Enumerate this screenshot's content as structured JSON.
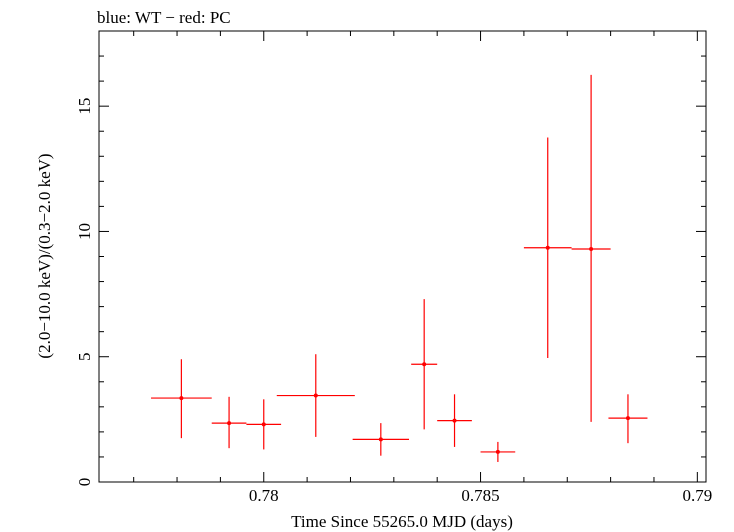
{
  "chart_data": {
    "type": "scatter",
    "title": "blue: WT − red: PC",
    "xlabel": "Time Since 55265.0 MJD (days)",
    "ylabel": "(2.0−10.0 keV)/(0.3−2.0 keV)",
    "xlim": [
      0.7762,
      0.7902
    ],
    "ylim": [
      0,
      18.0
    ],
    "x_ticks": [
      {
        "value": 0.78,
        "label": "0.78"
      },
      {
        "value": 0.785,
        "label": "0.785"
      },
      {
        "value": 0.79,
        "label": "0.79"
      }
    ],
    "y_ticks": [
      {
        "value": 0,
        "label": "0"
      },
      {
        "value": 5,
        "label": "5"
      },
      {
        "value": 10,
        "label": "10"
      },
      {
        "value": 15,
        "label": "15"
      }
    ],
    "x_minor_step": 0.001,
    "y_minor_step": 1,
    "grid": false,
    "color": "#ff0000",
    "series": [
      {
        "points": [
          {
            "x": 0.7781,
            "xerr": 0.0007,
            "y": 3.35,
            "yerr_low": 1.6,
            "yerr_high": 1.55
          },
          {
            "x": 0.7792,
            "xerr": 0.0004,
            "y": 2.35,
            "yerr_low": 1.0,
            "yerr_high": 1.05
          },
          {
            "x": 0.78,
            "xerr": 0.0004,
            "y": 2.3,
            "yerr_low": 1.0,
            "yerr_high": 1.0
          },
          {
            "x": 0.7812,
            "xerr": 0.0009,
            "y": 3.45,
            "yerr_low": 1.65,
            "yerr_high": 1.65
          },
          {
            "x": 0.7827,
            "xerr": 0.00065,
            "y": 1.7,
            "yerr_low": 0.65,
            "yerr_high": 0.65
          },
          {
            "x": 0.7837,
            "xerr": 0.0003,
            "y": 4.7,
            "yerr_low": 2.6,
            "yerr_high": 2.6
          },
          {
            "x": 0.7844,
            "xerr": 0.0004,
            "y": 2.45,
            "yerr_low": 1.05,
            "yerr_high": 1.05
          },
          {
            "x": 0.7854,
            "xerr": 0.0004,
            "y": 1.2,
            "yerr_low": 0.4,
            "yerr_high": 0.4
          },
          {
            "x": 0.78655,
            "xerr": 0.00055,
            "y": 9.35,
            "yerr_low": 4.4,
            "yerr_high": 4.4
          },
          {
            "x": 0.78755,
            "xerr": 0.00045,
            "y": 9.3,
            "yerr_low": 6.9,
            "yerr_high": 6.95
          },
          {
            "x": 0.7884,
            "xerr": 0.00045,
            "y": 2.55,
            "yerr_low": 1.0,
            "yerr_high": 0.95
          }
        ]
      }
    ]
  }
}
